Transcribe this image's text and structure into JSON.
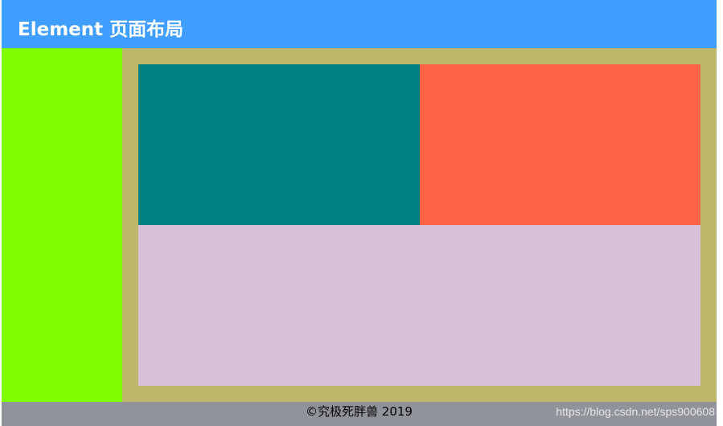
{
  "header": {
    "title": "Element 页面布局",
    "color": "#409EFF"
  },
  "aside": {
    "color": "#7FFF00"
  },
  "main": {
    "color": "#BDB76B",
    "blocks": [
      {
        "color": "#008080"
      },
      {
        "color": "#FF6347"
      },
      {
        "color": "#D8BFD8"
      }
    ]
  },
  "footer": {
    "text": "©究极死胖兽 2019",
    "color": "#909399"
  },
  "watermark": {
    "text": "https://blog.csdn.net/sps900608"
  }
}
